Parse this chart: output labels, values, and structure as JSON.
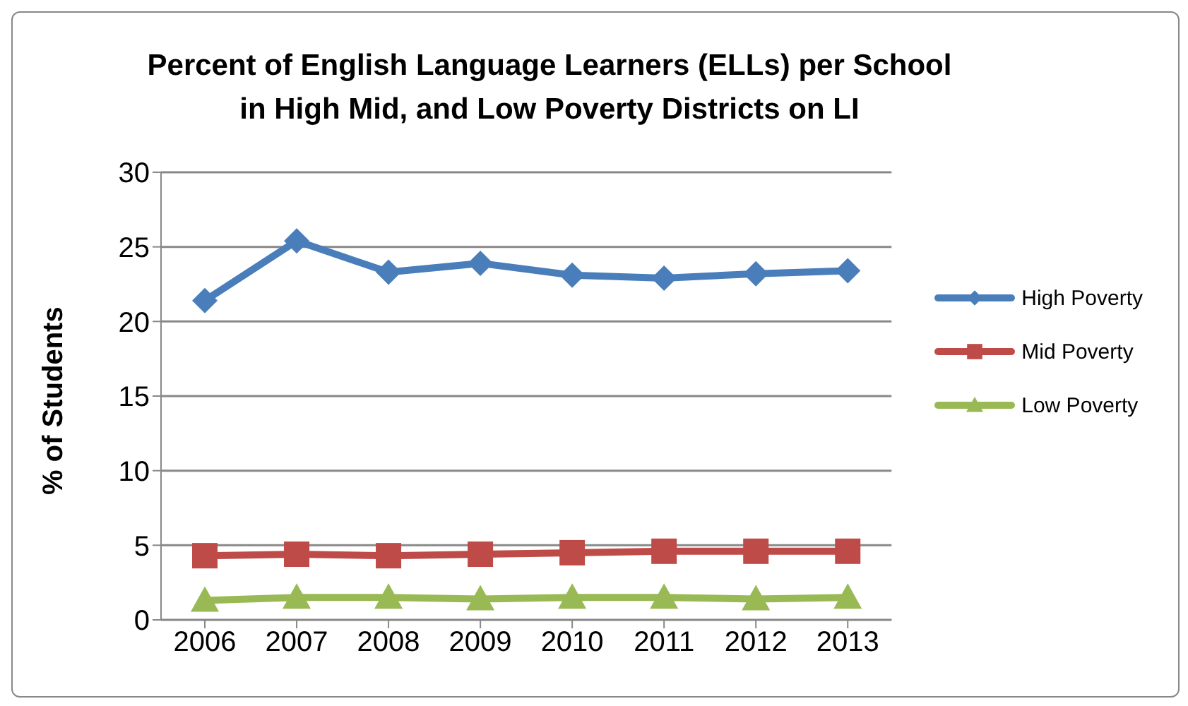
{
  "chart_data": {
    "type": "line",
    "title": "Percent of English Language Learners (ELLs) per School\nin High Mid, and Low Poverty Districts on LI",
    "ylabel": "% of Students",
    "categories": [
      "2006",
      "2007",
      "2008",
      "2009",
      "2010",
      "2011",
      "2012",
      "2013"
    ],
    "series": [
      {
        "name": "High Poverty",
        "color": "#4a7ebb",
        "marker": "diamond",
        "values": [
          21.4,
          25.4,
          23.3,
          23.9,
          23.1,
          22.9,
          23.2,
          23.4
        ]
      },
      {
        "name": "Mid Poverty",
        "color": "#be4b48",
        "marker": "square",
        "values": [
          4.3,
          4.4,
          4.3,
          4.4,
          4.5,
          4.6,
          4.6,
          4.6
        ]
      },
      {
        "name": "Low Poverty",
        "color": "#98b954",
        "marker": "triangle",
        "values": [
          1.3,
          1.5,
          1.5,
          1.4,
          1.5,
          1.5,
          1.4,
          1.5
        ]
      }
    ],
    "ylim": [
      0,
      30
    ],
    "yticks": [
      0,
      5,
      10,
      15,
      20,
      25,
      30
    ],
    "grid": "y",
    "legend": "right",
    "line_style": "solid"
  }
}
